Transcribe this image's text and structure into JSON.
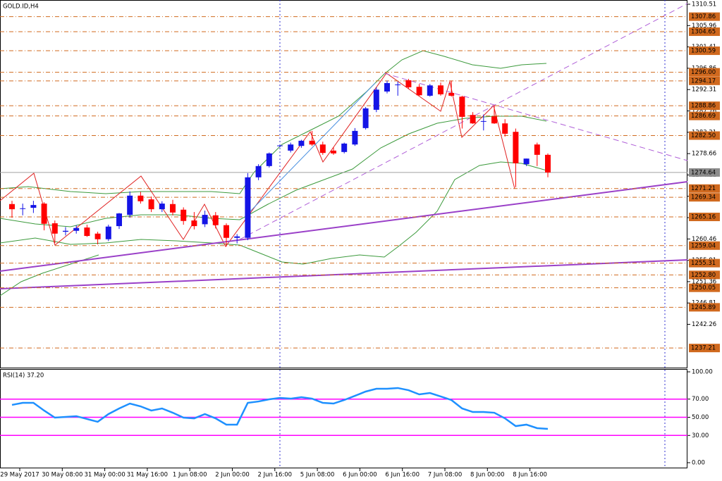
{
  "chart_data": [
    {
      "type": "candlestick",
      "title": "GOLD.ID,H4",
      "candles": [
        {
          "o": 1267.9,
          "h": 1268.6,
          "l": 1265.0,
          "c": 1266.8
        },
        {
          "o": 1266.9,
          "h": 1268.0,
          "l": 1265.5,
          "c": 1267.0
        },
        {
          "o": 1267.1,
          "h": 1268.6,
          "l": 1266.0,
          "c": 1267.7
        },
        {
          "o": 1268.0,
          "h": 1268.3,
          "l": 1262.3,
          "c": 1263.7
        },
        {
          "o": 1263.8,
          "h": 1264.4,
          "l": 1259.6,
          "c": 1261.6
        },
        {
          "o": 1262.0,
          "h": 1263.0,
          "l": 1261.2,
          "c": 1262.2
        },
        {
          "o": 1262.2,
          "h": 1263.4,
          "l": 1261.6,
          "c": 1262.8
        },
        {
          "o": 1262.9,
          "h": 1263.5,
          "l": 1260.9,
          "c": 1261.1
        },
        {
          "o": 1261.6,
          "h": 1262.0,
          "l": 1259.3,
          "c": 1260.4
        },
        {
          "o": 1260.4,
          "h": 1263.5,
          "l": 1260.0,
          "c": 1263.1
        },
        {
          "o": 1263.2,
          "h": 1266.0,
          "l": 1262.6,
          "c": 1265.9
        },
        {
          "o": 1265.6,
          "h": 1270.6,
          "l": 1265.0,
          "c": 1269.7
        },
        {
          "o": 1269.7,
          "h": 1270.5,
          "l": 1268.0,
          "c": 1268.5
        },
        {
          "o": 1268.9,
          "h": 1269.5,
          "l": 1266.2,
          "c": 1266.8
        },
        {
          "o": 1266.8,
          "h": 1268.5,
          "l": 1266.2,
          "c": 1268.0
        },
        {
          "o": 1267.9,
          "h": 1268.8,
          "l": 1265.5,
          "c": 1266.1
        },
        {
          "o": 1266.7,
          "h": 1267.2,
          "l": 1263.5,
          "c": 1264.3
        },
        {
          "o": 1264.4,
          "h": 1266.2,
          "l": 1262.5,
          "c": 1263.2
        },
        {
          "o": 1263.6,
          "h": 1266.5,
          "l": 1263.0,
          "c": 1265.6
        },
        {
          "o": 1265.5,
          "h": 1266.2,
          "l": 1262.7,
          "c": 1263.4
        },
        {
          "o": 1263.4,
          "h": 1263.8,
          "l": 1258.9,
          "c": 1260.7
        },
        {
          "o": 1260.7,
          "h": 1261.5,
          "l": 1259.5,
          "c": 1261.0
        },
        {
          "o": 1260.7,
          "h": 1274.5,
          "l": 1260.2,
          "c": 1273.6
        },
        {
          "o": 1273.6,
          "h": 1276.4,
          "l": 1273.0,
          "c": 1276.0
        },
        {
          "o": 1276.0,
          "h": 1278.9,
          "l": 1275.7,
          "c": 1278.7
        },
        {
          "o": 1280.3,
          "h": 1280.6,
          "l": 1280.0,
          "c": 1280.4
        },
        {
          "o": 1279.3,
          "h": 1281.0,
          "l": 1278.9,
          "c": 1280.6
        },
        {
          "o": 1280.3,
          "h": 1281.6,
          "l": 1279.9,
          "c": 1281.4
        },
        {
          "o": 1281.4,
          "h": 1283.5,
          "l": 1280.3,
          "c": 1280.6
        },
        {
          "o": 1280.6,
          "h": 1281.2,
          "l": 1278.4,
          "c": 1278.8
        },
        {
          "o": 1279.3,
          "h": 1280.0,
          "l": 1278.4,
          "c": 1278.7
        },
        {
          "o": 1279.0,
          "h": 1281.0,
          "l": 1278.7,
          "c": 1280.8
        },
        {
          "o": 1280.6,
          "h": 1284.1,
          "l": 1280.3,
          "c": 1283.5
        },
        {
          "o": 1284.1,
          "h": 1288.6,
          "l": 1283.8,
          "c": 1288.3
        },
        {
          "o": 1288.0,
          "h": 1292.8,
          "l": 1287.5,
          "c": 1292.3
        },
        {
          "o": 1291.9,
          "h": 1294.2,
          "l": 1291.5,
          "c": 1293.7
        },
        {
          "o": 1293.3,
          "h": 1294.0,
          "l": 1291.0,
          "c": 1293.4
        },
        {
          "o": 1294.3,
          "h": 1294.6,
          "l": 1292.5,
          "c": 1292.8
        },
        {
          "o": 1292.9,
          "h": 1293.5,
          "l": 1291.0,
          "c": 1291.1
        },
        {
          "o": 1291.0,
          "h": 1293.5,
          "l": 1290.8,
          "c": 1293.2
        },
        {
          "o": 1293.2,
          "h": 1293.8,
          "l": 1291.0,
          "c": 1291.3
        },
        {
          "o": 1291.6,
          "h": 1294.2,
          "l": 1290.8,
          "c": 1291.0
        },
        {
          "o": 1290.8,
          "h": 1291.0,
          "l": 1284.0,
          "c": 1286.5
        },
        {
          "o": 1286.9,
          "h": 1287.5,
          "l": 1285.0,
          "c": 1285.1
        },
        {
          "o": 1285.5,
          "h": 1287.0,
          "l": 1283.6,
          "c": 1285.6
        },
        {
          "o": 1286.6,
          "h": 1289.0,
          "l": 1285.0,
          "c": 1285.1
        },
        {
          "o": 1285.1,
          "h": 1286.0,
          "l": 1282.3,
          "c": 1282.9
        },
        {
          "o": 1283.3,
          "h": 1284.0,
          "l": 1271.5,
          "c": 1276.6
        },
        {
          "o": 1276.4,
          "h": 1277.6,
          "l": 1276.0,
          "c": 1277.6
        },
        {
          "o": 1280.6,
          "h": 1281.0,
          "l": 1276.0,
          "c": 1278.4
        },
        {
          "o": 1278.4,
          "h": 1278.7,
          "l": 1273.6,
          "c": 1274.64
        }
      ],
      "up_color": "#1414e6",
      "down_color": "#ff0000",
      "ylim": [
        1233.03,
        1311.41
      ],
      "yticks": [
        1310.51,
        1305.96,
        1301.41,
        1296.86,
        1292.31,
        1287.76,
        1283.21,
        1278.66,
        1274.11,
        1269.56,
        1265.01,
        1260.46,
        1255.91,
        1251.36,
        1246.81,
        1242.26
      ],
      "levels": [
        1307.86,
        1304.65,
        1300.59,
        {
          "value": 1296,
          "label": "1296.00"
        },
        1294.17,
        1288.86,
        1286.69,
        {
          "value": 1282.5,
          "label": "1282.50"
        },
        1271.21,
        1269.34,
        1265.16,
        1259.04,
        1255.31,
        {
          "value": 1252.8,
          "label": "1252.80"
        },
        1250.05,
        1245.89,
        1237.21
      ],
      "level_color": "#d0691e",
      "current_price": 1274.64,
      "time_labels": [
        "29 May 2017",
        "30 May 08:00",
        "31 May 00:00",
        "31 May 16:00",
        "1 Jun 08:00",
        "2 Jun 00:00",
        "2 Jun 16:00",
        "5 Jun 08:00",
        "6 Jun 00:00",
        "6 Jun 16:00",
        "7 Jun 08:00",
        "8 Jun 00:00",
        "8 Jun 16:00"
      ]
    },
    {
      "type": "line",
      "title": "RSI(14) 37.20",
      "color": "#1e90ff",
      "values": [
        63.6,
        65.9,
        65.9,
        57.4,
        49.6,
        50.4,
        51.2,
        48.1,
        45.0,
        53.5,
        59.7,
        65.1,
        62.0,
        57.4,
        59.7,
        55.0,
        49.6,
        48.8,
        53.5,
        48.8,
        41.9,
        41.9,
        65.9,
        67.4,
        69.8,
        71.3,
        70.5,
        72.1,
        70.5,
        65.9,
        65.1,
        69.0,
        73.6,
        78.3,
        81.4,
        81.4,
        82.2,
        79.8,
        75.2,
        76.7,
        72.9,
        69.0,
        59.7,
        55.8,
        55.8,
        55.0,
        48.8,
        40.3,
        41.9,
        38.0,
        37.2
      ],
      "ylim": [
        -6.2,
        103.1
      ],
      "yticks": [
        {
          "value": 100,
          "label": "100.00"
        },
        {
          "value": 70,
          "label": "70.00"
        },
        {
          "value": 50,
          "label": "50.00"
        },
        {
          "value": 30,
          "label": "30.00"
        },
        {
          "value": 0,
          "label": "0.00"
        }
      ],
      "levels": [
        70,
        50,
        30
      ],
      "level_color": "#ff00ff"
    }
  ]
}
